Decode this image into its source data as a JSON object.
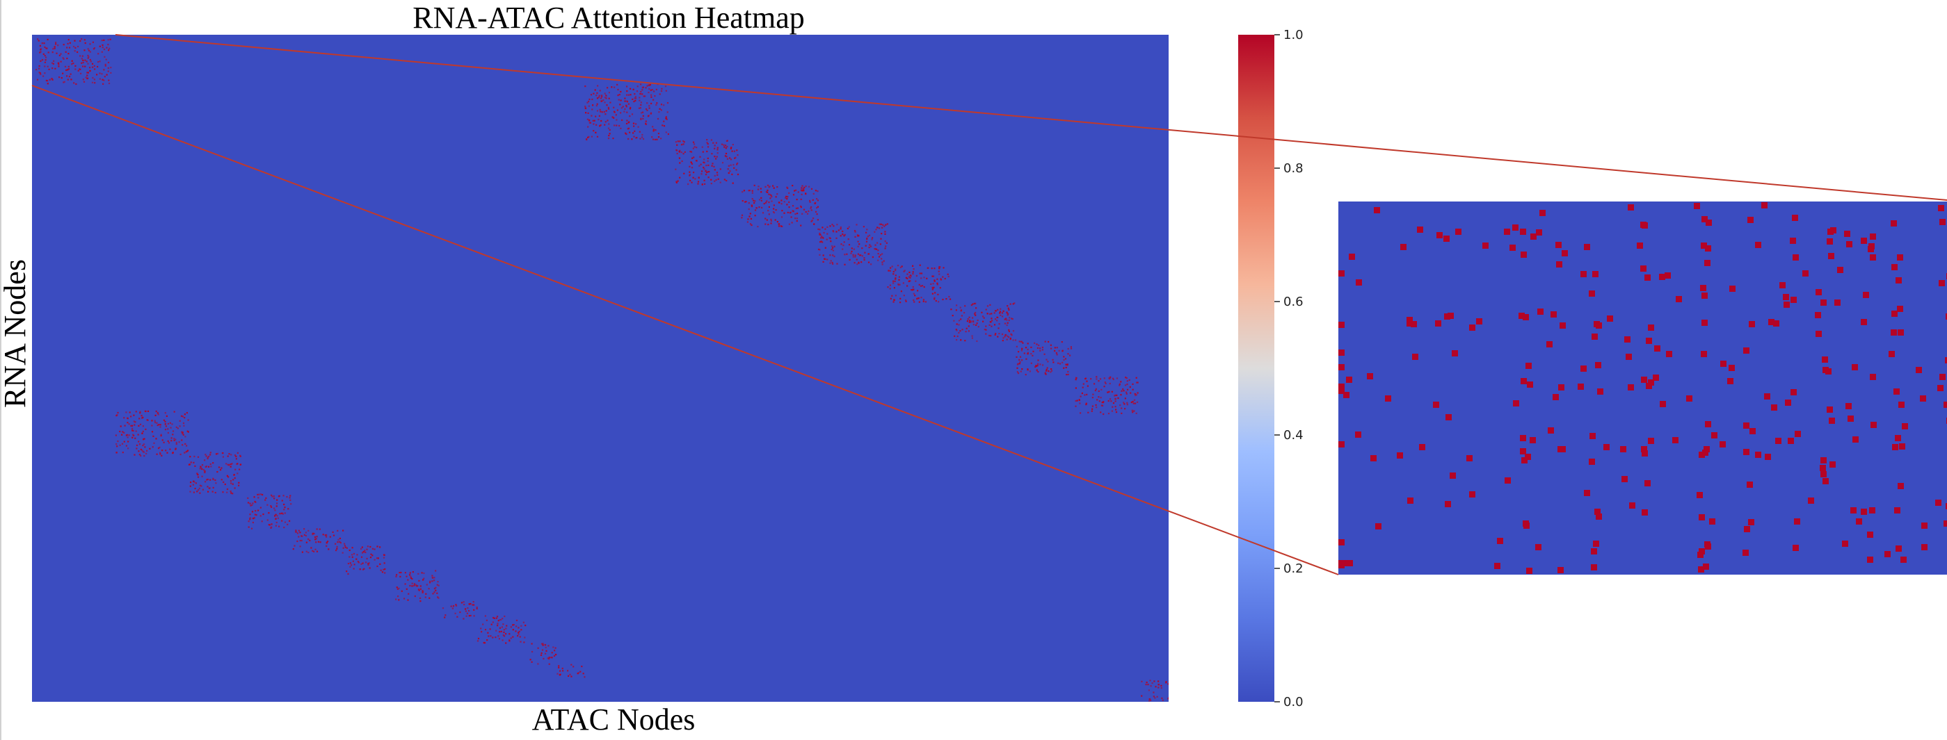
{
  "chart_data": {
    "type": "heatmap",
    "title": "RNA-ATAC Attention Heatmap",
    "xlabel": "ATAC Nodes",
    "ylabel": "RNA Nodes",
    "value_range": [
      0.0,
      1.0
    ],
    "colormap": "coolwarm",
    "background_value": 0.0,
    "block_value": 1.0,
    "grid": false,
    "colorbar": {
      "position": "right",
      "ticks": [
        0.0,
        0.2,
        0.4,
        0.6,
        0.8,
        1.0
      ],
      "tick_labels": [
        "0.0",
        "0.2",
        "0.4",
        "0.6",
        "0.8",
        "1.0"
      ]
    },
    "inset": {
      "description": "zoomed region of top-left block",
      "source_region_fraction": {
        "x": [
          0.0,
          0.075
        ],
        "y": [
          0.0,
          0.075
        ]
      }
    },
    "colors": {
      "low": "#3b4cc0",
      "mid": "#dddddd",
      "high": "#b40426",
      "connector": "#c0392b"
    }
  }
}
